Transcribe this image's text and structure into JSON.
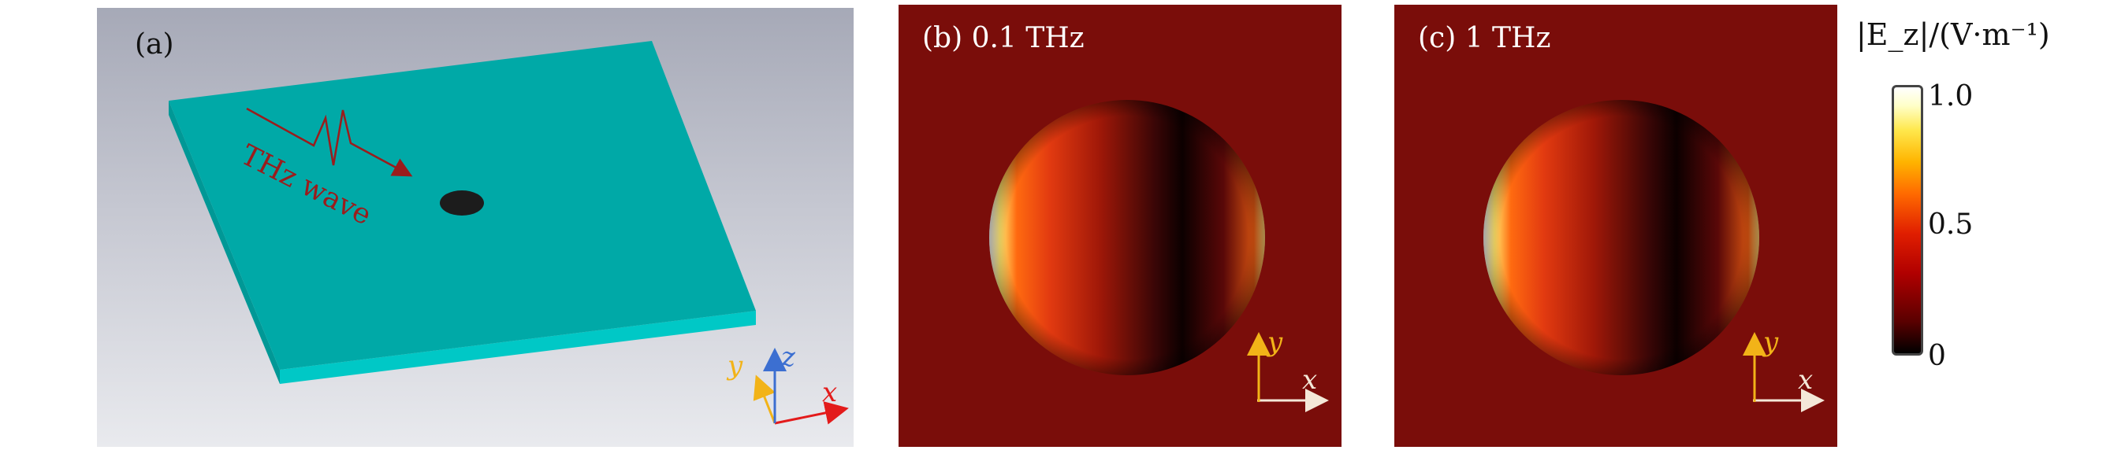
{
  "panel_a": {
    "label": "(a)",
    "wave_label": "THz wave",
    "axes": {
      "x": "x",
      "y": "y",
      "z": "z"
    }
  },
  "panel_b": {
    "label": "(b) 0.1 THz",
    "axes": {
      "x": "x",
      "y": "y"
    }
  },
  "panel_c": {
    "label": "(c) 1 THz",
    "axes": {
      "x": "x",
      "y": "y"
    }
  },
  "colorbar": {
    "title": "|E_z|/(V·m⁻¹)",
    "ticks": [
      "1.0",
      "0.5",
      "0"
    ],
    "colors": [
      "#000000",
      "#b00000",
      "#ff6a00",
      "#ffe84d",
      "#ffffff"
    ]
  },
  "colors": {
    "slab_top": "#00a9a7",
    "slab_side": "#00c8c6",
    "wave": "#9b1c1c",
    "axis_x": "#e31b1b",
    "axis_y": "#f2b318",
    "axis_z": "#3c6fd1",
    "field_background": "#7a0d0a"
  }
}
